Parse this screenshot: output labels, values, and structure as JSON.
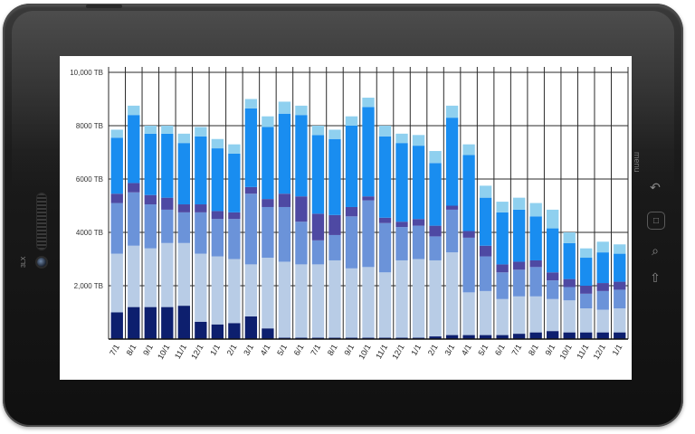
{
  "chart_data": {
    "type": "bar",
    "stacked": true,
    "title": "",
    "xlabel": "",
    "ylabel": "",
    "ylim": [
      0,
      10000
    ],
    "y_ticks": [
      2000,
      4000,
      6000,
      8000,
      10000
    ],
    "y_tick_labels": [
      "2,000 TB",
      "4000 TB",
      "6000 TB",
      "8000 TB",
      "10,000 TB"
    ],
    "grid": true,
    "categories": [
      "7/1",
      "8/1",
      "9/1",
      "10/1",
      "11/1",
      "12/1",
      "1/1",
      "2/1",
      "3/1",
      "4/1",
      "5/1",
      "6/1",
      "7/1",
      "8/1",
      "9/1",
      "10/1",
      "11/1",
      "12/1",
      "1/1",
      "2/1",
      "3/1",
      "4/1",
      "5/1",
      "6/1",
      "7/1",
      "8/1",
      "9/1",
      "10/1",
      "11/1",
      "12/1",
      "1/1"
    ],
    "series": [
      {
        "color": "#0d1f6e",
        "values": [
          1000,
          1200,
          1200,
          1200,
          1250,
          650,
          550,
          600,
          850,
          400,
          50,
          50,
          50,
          50,
          50,
          50,
          50,
          50,
          50,
          100,
          150,
          150,
          150,
          150,
          200,
          250,
          300,
          250,
          250,
          250,
          250
        ]
      },
      {
        "color": "#b8cce6",
        "values": [
          2200,
          2300,
          2200,
          2400,
          2350,
          2550,
          2550,
          2400,
          1950,
          2650,
          2850,
          2750,
          2750,
          2900,
          2600,
          2650,
          2450,
          2900,
          2950,
          2850,
          3100,
          1600,
          1650,
          1350,
          1400,
          1350,
          1200,
          1200,
          900,
          850,
          900
        ]
      },
      {
        "color": "#6b93d9",
        "values": [
          1900,
          2000,
          1650,
          1250,
          1150,
          1550,
          1400,
          1500,
          2650,
          1900,
          2050,
          1600,
          900,
          950,
          1950,
          2500,
          1850,
          1250,
          1250,
          900,
          1600,
          2050,
          1300,
          1000,
          1000,
          1100,
          700,
          500,
          550,
          700,
          700
        ]
      },
      {
        "color": "#4e49a3",
        "values": [
          350,
          350,
          350,
          450,
          300,
          300,
          300,
          250,
          250,
          300,
          500,
          950,
          1000,
          750,
          350,
          150,
          200,
          200,
          250,
          400,
          150,
          250,
          400,
          300,
          300,
          250,
          300,
          300,
          300,
          300,
          300
        ]
      },
      {
        "color": "#198df0",
        "values": [
          2100,
          2550,
          2300,
          2400,
          2300,
          2550,
          2350,
          2200,
          2950,
          2700,
          3000,
          3050,
          2950,
          2850,
          3050,
          3350,
          3050,
          2950,
          2750,
          2350,
          3300,
          2850,
          1800,
          1950,
          1950,
          1650,
          1650,
          1350,
          1050,
          1150,
          1050
        ]
      },
      {
        "color": "#8fd0ef",
        "values": [
          300,
          350,
          300,
          300,
          350,
          350,
          350,
          350,
          350,
          400,
          450,
          350,
          350,
          350,
          350,
          350,
          400,
          350,
          400,
          450,
          450,
          400,
          450,
          400,
          450,
          500,
          700,
          400,
          350,
          400,
          350
        ]
      }
    ]
  },
  "device": {
    "brand_text": "3LX",
    "menu_label": "menu",
    "back_icon": "back-arrow-icon",
    "home_icon": "home-icon",
    "search_icon": "search-icon",
    "up_icon": "up-arrow-icon"
  }
}
